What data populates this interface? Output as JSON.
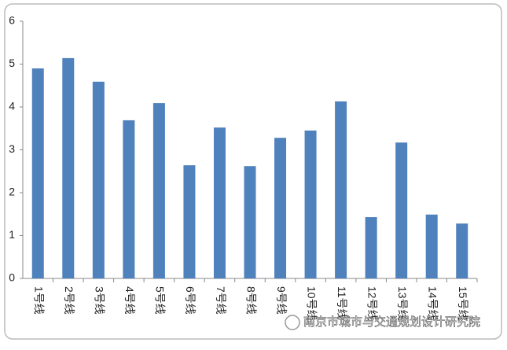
{
  "chart_data": {
    "type": "bar",
    "categories": [
      "1号线",
      "2号线",
      "3号线",
      "4号线",
      "5号线",
      "6号线",
      "7号线",
      "8号线",
      "9号线",
      "10号线",
      "11号线",
      "12号线",
      "13号线",
      "14号线",
      "15号线"
    ],
    "values": [
      4.9,
      5.14,
      4.59,
      3.69,
      4.09,
      2.64,
      3.52,
      2.62,
      3.28,
      3.45,
      4.13,
      1.43,
      3.17,
      1.49,
      1.28
    ],
    "color": "#4f81bd",
    "ylim": [
      0,
      6
    ],
    "yticks": [
      0,
      1,
      2,
      3,
      4,
      5,
      6
    ],
    "grid": false
  },
  "watermark": "南京市城市与交通规划设计研究院"
}
